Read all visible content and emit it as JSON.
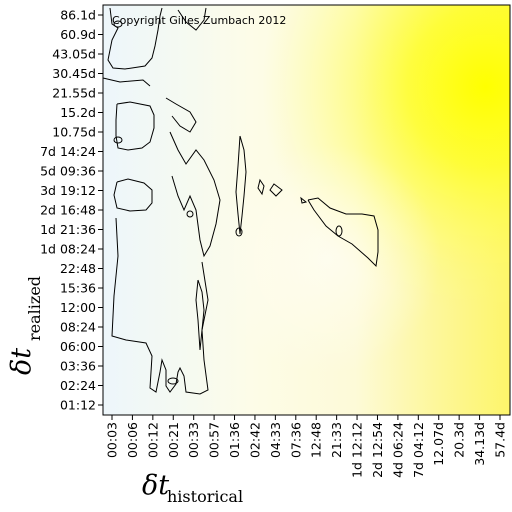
{
  "chart_data": {
    "type": "heatmap",
    "copyright": "Copyright Gilles Zumbach 2012",
    "xlabel": {
      "symbol": "δt",
      "subscript": "historical"
    },
    "ylabel": {
      "symbol": "δt",
      "subscript": "realized"
    },
    "x_ticks": [
      "00:03",
      "00:06",
      "00:12",
      "00:21",
      "00:33",
      "00:57",
      "01:36",
      "02:42",
      "04:33",
      "07:36",
      "12:48",
      "21:33",
      "1d 12:12",
      "2d 12:54",
      "4d 06:24",
      "7d 04:12",
      "12.07d",
      "20.3d",
      "34.13d",
      "57.4d"
    ],
    "y_ticks": [
      "86.1d",
      "60.9d",
      "43.05d",
      "30.45d",
      "21.55d",
      "15.2d",
      "10.75d",
      "7d 14:24",
      "5d 09:36",
      "3d 19:12",
      "2d 16:48",
      "1d 21:36",
      "1d 08:24",
      "22:48",
      "15:36",
      "12:00",
      "08:24",
      "06:00",
      "03:36",
      "02:24",
      "01:12"
    ],
    "color_scale": {
      "low": "#eef6fb",
      "mid": "#fdfbe6",
      "high": "#ffff00"
    },
    "grid": false,
    "legend": false
  }
}
